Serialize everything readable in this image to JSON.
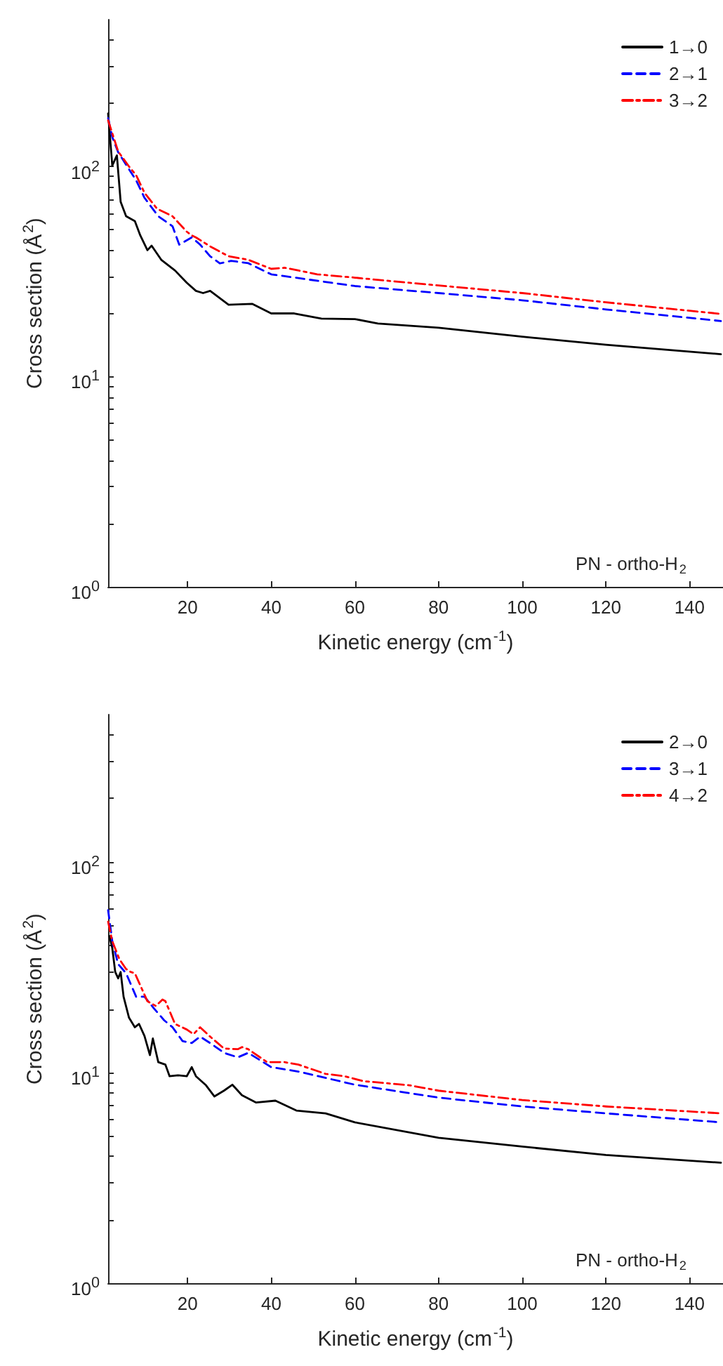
{
  "chart_data": [
    {
      "type": "line",
      "xlabel": "Kinetic energy (cm$^{-1}$)",
      "ylabel": "Cross section (Å$^{2}$)",
      "annotations": [
        "PN - ortho-H$_{2}$"
      ],
      "log": "y",
      "grid": false,
      "legend": "top right",
      "marker": "none",
      "xlim": [
        1,
        148
      ],
      "xticks": [
        20,
        40,
        60,
        80,
        100,
        120,
        140
      ],
      "ylim": [
        1,
        500
      ],
      "yticks": [
        {
          "value": 1,
          "label": "10$^{0}$"
        },
        {
          "value": 2,
          "label": null
        },
        {
          "value": 3,
          "label": null
        },
        {
          "value": 4,
          "label": null
        },
        {
          "value": 5,
          "label": null
        },
        {
          "value": 6,
          "label": null
        },
        {
          "value": 7,
          "label": null
        },
        {
          "value": 8,
          "label": null
        },
        {
          "value": 9,
          "label": null
        },
        {
          "value": 10,
          "label": "10$^{1}$"
        },
        {
          "value": 20,
          "label": null
        },
        {
          "value": 30,
          "label": null
        },
        {
          "value": 40,
          "label": null
        },
        {
          "value": 50,
          "label": null
        },
        {
          "value": 60,
          "label": null
        },
        {
          "value": 70,
          "label": null
        },
        {
          "value": 80,
          "label": null
        },
        {
          "value": 90,
          "label": null
        },
        {
          "value": 100,
          "label": "10$^{2}$"
        },
        {
          "value": 200,
          "label": null
        },
        {
          "value": 300,
          "label": null
        },
        {
          "value": 400,
          "label": null
        }
      ],
      "series": [
        {
          "name": "1→0",
          "color": "#000000",
          "line_style": "solid",
          "x": [
            1,
            2,
            3.1,
            4,
            5.3,
            7.4,
            8.7,
            10.4,
            11.4,
            13.7,
            17,
            19.8,
            22,
            23.7,
            25.4,
            29.8,
            35.5,
            40,
            45.5,
            52,
            60,
            65.5,
            80,
            100,
            120,
            147.5
          ],
          "values": [
            179,
            101,
            113,
            68,
            58,
            55,
            47,
            40,
            42,
            36,
            32,
            28,
            25.6,
            25,
            25.6,
            22,
            22.2,
            20,
            20,
            18.9,
            18.8,
            17.9,
            17.1,
            15.5,
            14.2,
            12.8
          ]
        },
        {
          "name": "2→1",
          "color": "#0000ff",
          "line_style": "dashed",
          "x": [
            1,
            2,
            3.4,
            6,
            7.7,
            9.7,
            13,
            16.4,
            18,
            21,
            23,
            25.4,
            27.7,
            30.4,
            34.5,
            40,
            60,
            80,
            100,
            120,
            147.5
          ],
          "values": [
            170,
            138,
            117,
            97,
            86,
            71,
            58,
            52,
            42.5,
            46,
            42.5,
            37.4,
            34.6,
            35.6,
            34.7,
            30.7,
            27,
            25,
            23.1,
            20.9,
            18.4
          ]
        },
        {
          "name": "3→2",
          "color": "#ff0000",
          "line_style": "dashdot",
          "x": [
            1,
            3.4,
            6,
            7.7,
            9.7,
            12.7,
            16.4,
            19.8,
            21,
            22,
            25.4,
            29.8,
            34.5,
            40,
            43.2,
            51,
            60,
            72,
            100,
            120,
            147.5
          ],
          "values": [
            166,
            118,
            100,
            91,
            75,
            63,
            58,
            49,
            47,
            46,
            41.7,
            37.4,
            36,
            32.6,
            33,
            30.7,
            29.6,
            28.1,
            25,
            22.6,
            19.9
          ]
        }
      ]
    },
    {
      "type": "line",
      "xlabel": "Kinetic energy (cm$^{-1}$)",
      "ylabel": "Cross section (Å$^{2}$)",
      "annotations": [
        "PN - ortho-H$_{2}$"
      ],
      "log": "y",
      "grid": false,
      "legend": "top right",
      "marker": "none",
      "xlim": [
        1,
        148
      ],
      "xticks": [
        20,
        40,
        60,
        80,
        100,
        120,
        140
      ],
      "ylim": [
        1,
        500
      ],
      "yticks": [
        {
          "value": 1,
          "label": "10$^{0}$"
        },
        {
          "value": 2,
          "label": null
        },
        {
          "value": 3,
          "label": null
        },
        {
          "value": 4,
          "label": null
        },
        {
          "value": 5,
          "label": null
        },
        {
          "value": 6,
          "label": null
        },
        {
          "value": 7,
          "label": null
        },
        {
          "value": 8,
          "label": null
        },
        {
          "value": 9,
          "label": null
        },
        {
          "value": 10,
          "label": "10$^{1}$"
        },
        {
          "value": 20,
          "label": null
        },
        {
          "value": 30,
          "label": null
        },
        {
          "value": 40,
          "label": null
        },
        {
          "value": 50,
          "label": null
        },
        {
          "value": 60,
          "label": null
        },
        {
          "value": 70,
          "label": null
        },
        {
          "value": 80,
          "label": null
        },
        {
          "value": 90,
          "label": null
        },
        {
          "value": 100,
          "label": "10$^{2}$"
        },
        {
          "value": 200,
          "label": null
        },
        {
          "value": 300,
          "label": null
        },
        {
          "value": 400,
          "label": null
        }
      ],
      "series": [
        {
          "name": "2→0",
          "color": "#000000",
          "line_style": "solid",
          "x": [
            1.3,
            2,
            2.7,
            3.4,
            4,
            4.7,
            6,
            7.4,
            8.4,
            9.7,
            11,
            11.7,
            13,
            14.7,
            15.7,
            17.7,
            19.8,
            21,
            22,
            24.4,
            26.4,
            28.7,
            30.7,
            33,
            36.4,
            41,
            46,
            53,
            60,
            80,
            100,
            120,
            147.5
          ],
          "values": [
            44.5,
            39,
            30,
            28,
            30,
            22.9,
            18.2,
            16.4,
            17,
            14.9,
            12.1,
            14.5,
            11.2,
            10.9,
            9.6,
            9.7,
            9.6,
            10.6,
            9.6,
            8.7,
            7.7,
            8.2,
            8.75,
            7.8,
            7.2,
            7.35,
            6.6,
            6.4,
            5.8,
            4.9,
            4.45,
            4.06,
            3.73
          ]
        },
        {
          "name": "3→1",
          "color": "#0000ff",
          "line_style": "dashed",
          "x": [
            1,
            2,
            3.4,
            5.3,
            7.7,
            9.7,
            12,
            14.4,
            16.4,
            18.8,
            21,
            23,
            25.4,
            28.7,
            32,
            34.5,
            40,
            46.5,
            60,
            80,
            100,
            120,
            147.5
          ],
          "values": [
            59,
            42,
            32.7,
            29.6,
            22.9,
            22.9,
            20.1,
            17.7,
            16.4,
            14.1,
            13.8,
            14.8,
            13.8,
            12.4,
            11.8,
            12.4,
            10.6,
            10.1,
            8.75,
            7.6,
            6.9,
            6.4,
            5.8
          ]
        },
        {
          "name": "4→2",
          "color": "#ff0000",
          "line_style": "dashdot",
          "x": [
            1,
            2,
            3.7,
            5.3,
            6.4,
            7.4,
            8.4,
            10.4,
            12.4,
            14,
            14.7,
            17,
            19.8,
            21.4,
            23,
            25.4,
            28.7,
            32,
            33,
            34.5,
            39,
            43.2,
            46.5,
            53,
            57.5,
            62,
            73,
            80,
            100,
            120,
            147.5
          ],
          "values": [
            52,
            42,
            34.5,
            31,
            30,
            29.6,
            26.7,
            21.8,
            20.7,
            22.2,
            21.8,
            17,
            16,
            15.2,
            16.4,
            14.8,
            13,
            12.9,
            13.2,
            12.9,
            11.2,
            11.2,
            10.9,
            9.85,
            9.6,
            9.1,
            8.7,
            8.2,
            7.4,
            6.9,
            6.4
          ]
        }
      ]
    }
  ]
}
